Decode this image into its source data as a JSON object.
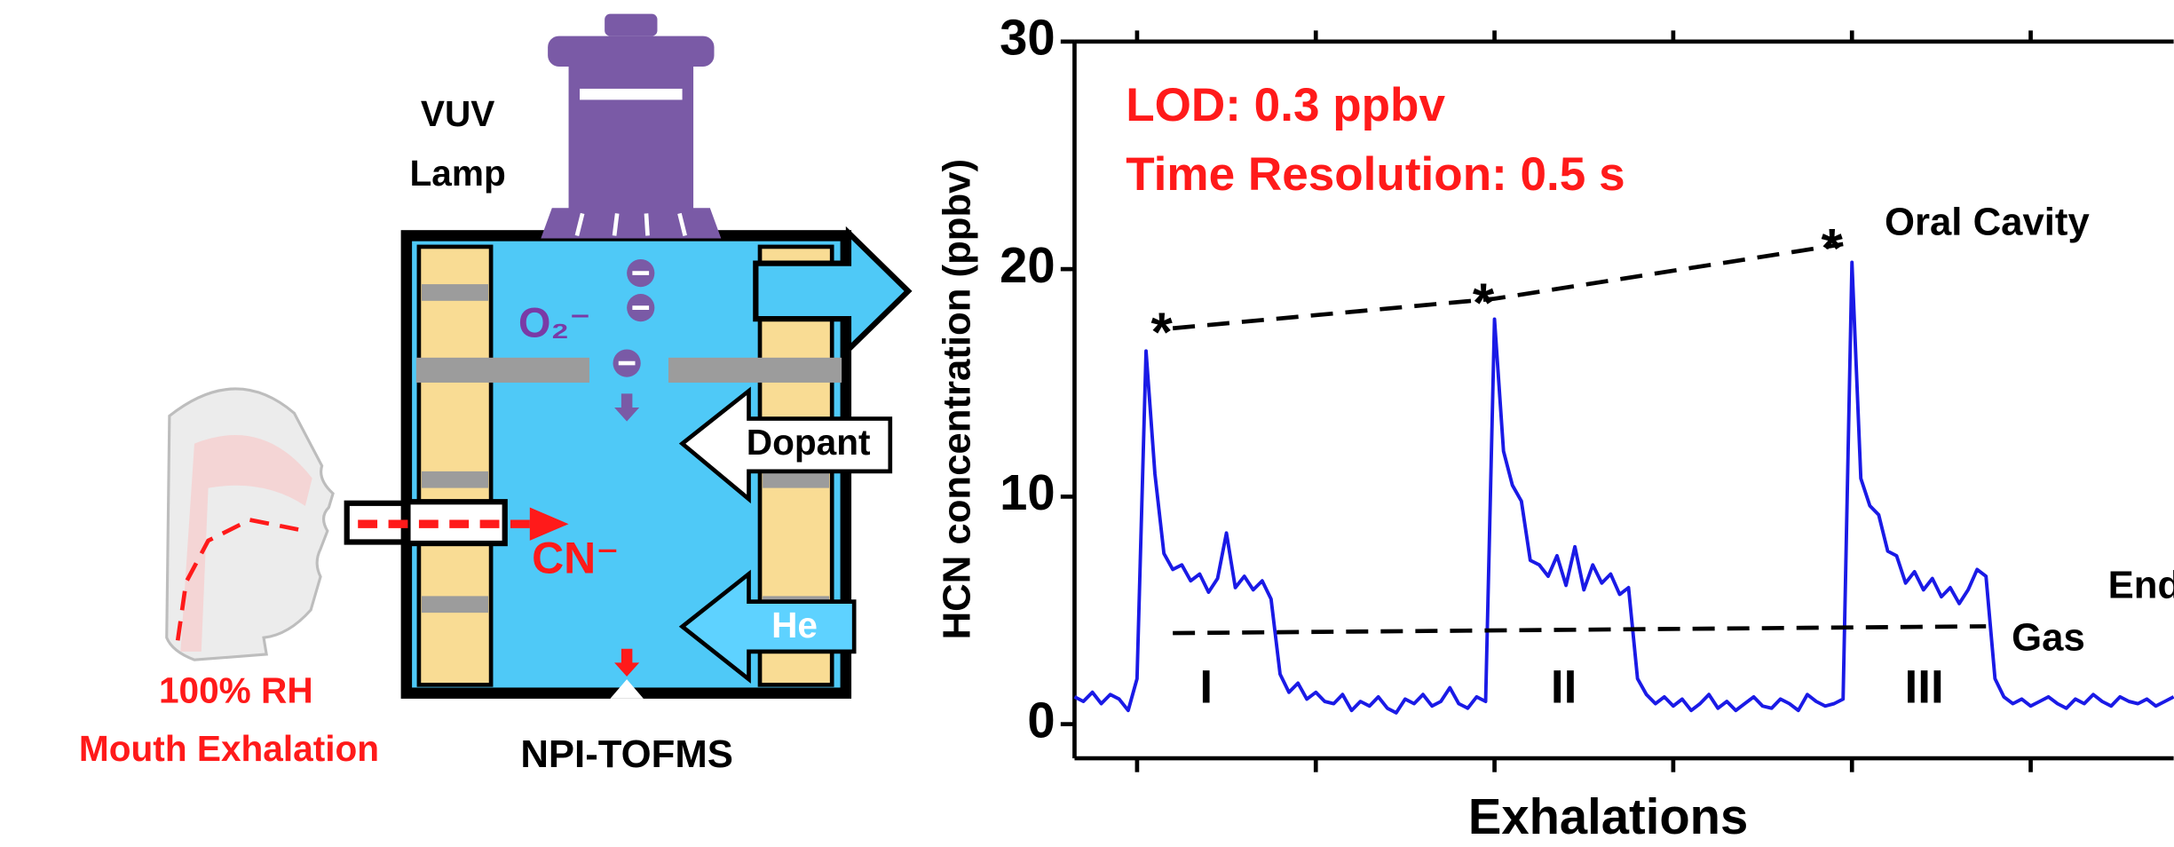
{
  "diagram": {
    "lamp_label": [
      "VUV",
      "Lamp"
    ],
    "oxygen_ion": "O₂⁻",
    "dopant": "Dopant",
    "cyanide_ion": "CN⁻",
    "helium": "He",
    "sample_label": [
      "100% RH",
      "Mouth Exhalation"
    ],
    "instrument": "NPI-TOFMS"
  },
  "chart_data": {
    "type": "line",
    "annotations": [
      "LOD: 0.3 ppbv",
      "Time Resolution: 0.5 s"
    ],
    "phase_labels": [
      "I",
      "II",
      "III"
    ],
    "x_label": "Exhalations",
    "y_label": "HCN concentration (ppbv)",
    "xlim": [
      -7,
      116
    ],
    "xticks": [
      0,
      20,
      40,
      60,
      80,
      100
    ],
    "ylim": [
      -1.5,
      30
    ],
    "yticks": [
      0,
      10,
      20,
      30
    ],
    "x": [
      -7,
      -6,
      -5,
      -4,
      -3,
      -2,
      -1,
      0,
      1,
      2,
      3,
      4,
      5,
      6,
      7,
      8,
      9,
      10,
      11,
      12,
      13,
      14,
      15,
      16,
      17,
      18,
      19,
      20,
      21,
      22,
      23,
      24,
      25,
      26,
      27,
      28,
      29,
      30,
      31,
      32,
      33,
      34,
      35,
      36,
      37,
      38,
      39,
      40,
      41,
      42,
      43,
      44,
      45,
      46,
      47,
      48,
      49,
      50,
      51,
      52,
      53,
      54,
      55,
      56,
      57,
      58,
      59,
      60,
      61,
      62,
      63,
      64,
      65,
      66,
      67,
      68,
      69,
      70,
      71,
      72,
      73,
      74,
      75,
      76,
      77,
      78,
      79,
      80,
      81,
      82,
      83,
      84,
      85,
      86,
      87,
      88,
      89,
      90,
      91,
      92,
      93,
      94,
      95,
      96,
      97,
      98,
      99,
      100,
      101,
      102,
      103,
      104,
      105,
      106,
      107,
      108,
      109,
      110,
      111,
      112,
      113,
      114,
      115,
      116
    ],
    "series": [
      {
        "color": "#1a1ae6",
        "values": [
          1.2,
          1.0,
          1.4,
          0.9,
          1.3,
          1.1,
          0.6,
          2.0,
          16.4,
          11,
          7.5,
          6.8,
          7.0,
          6.3,
          6.6,
          5.8,
          6.4,
          8.4,
          6.0,
          6.5,
          5.9,
          6.3,
          5.5,
          2.2,
          1.4,
          1.8,
          1.1,
          1.4,
          1.0,
          0.9,
          1.3,
          0.6,
          1.0,
          0.8,
          1.2,
          0.7,
          0.5,
          1.1,
          0.9,
          1.3,
          0.8,
          1.0,
          1.6,
          0.9,
          0.7,
          1.2,
          1.0,
          17.8,
          12,
          10.5,
          9.8,
          7.2,
          7.0,
          6.5,
          7.4,
          6.1,
          7.8,
          5.9,
          7.0,
          6.2,
          6.6,
          5.7,
          6.0,
          2.0,
          1.3,
          0.9,
          1.2,
          0.8,
          1.1,
          0.6,
          0.9,
          1.3,
          0.7,
          1.0,
          0.6,
          0.9,
          1.2,
          0.8,
          0.7,
          1.1,
          0.9,
          0.6,
          1.3,
          1.0,
          0.8,
          0.9,
          1.1,
          20.3,
          10.8,
          9.6,
          9.2,
          7.6,
          7.4,
          6.2,
          6.7,
          5.9,
          6.4,
          5.6,
          6.0,
          5.3,
          5.9,
          6.8,
          6.5,
          2.0,
          1.2,
          0.9,
          1.1,
          0.8,
          1.0,
          1.2,
          0.9,
          0.7,
          1.1,
          0.9,
          1.3,
          1.0,
          0.8,
          1.2,
          1.0,
          0.9,
          1.1,
          0.8,
          1.0,
          1.2
        ]
      }
    ],
    "reference_lines": [
      {
        "label": "Oral Cavity",
        "marker": "*",
        "x": [
          4,
          40,
          79
        ],
        "y": [
          17.4,
          18.7,
          21.1
        ]
      },
      {
        "label": [
          "End-tidal",
          "Gas"
        ],
        "x": [
          4,
          95
        ],
        "y": [
          4.0,
          4.3
        ]
      }
    ]
  }
}
